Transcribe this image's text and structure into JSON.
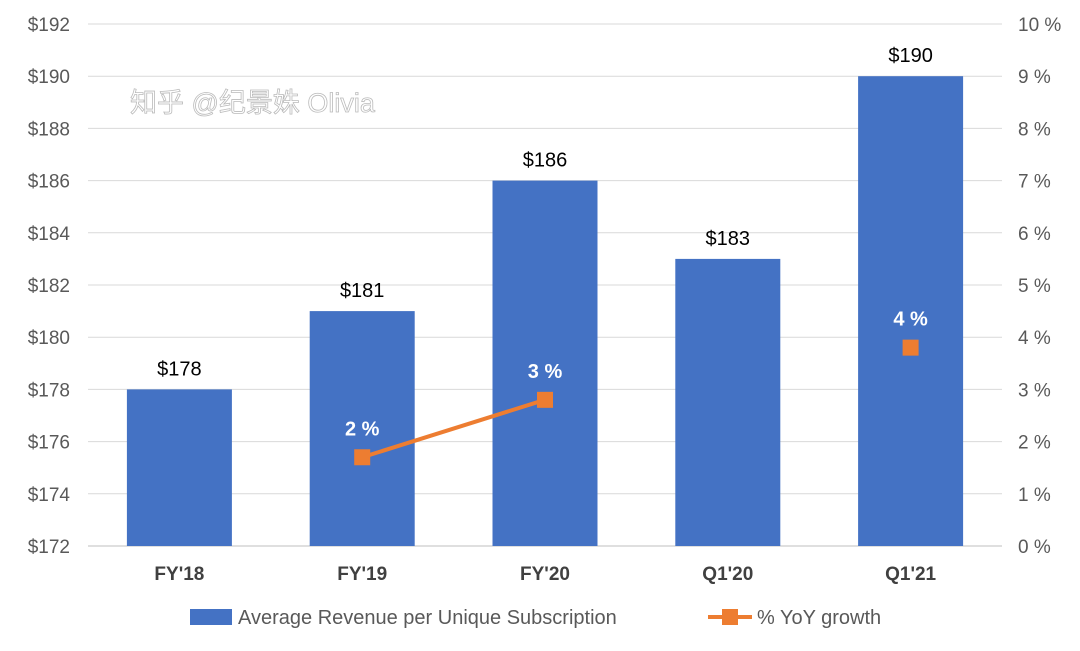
{
  "chart_data": {
    "type": "bar",
    "title": "",
    "categories": [
      "FY'18",
      "FY'19",
      "FY'20",
      "Q1'20",
      "Q1'21"
    ],
    "series": [
      {
        "name": "Average Revenue per Unique Subscription",
        "type": "bar",
        "axis": "left",
        "values": [
          178,
          181,
          186,
          183,
          190
        ],
        "labels": [
          "$178",
          "$181",
          "$186",
          "$183",
          "$190"
        ],
        "color": "#4472C4"
      },
      {
        "name": "% YoY growth",
        "type": "line",
        "axis": "right",
        "values": [
          null,
          1.7,
          2.8,
          null,
          3.8
        ],
        "labels": [
          null,
          "2 %",
          "3 %",
          null,
          "4 %"
        ],
        "color": "#ED7D31"
      }
    ],
    "ylim": [
      172,
      192
    ],
    "yticks": [
      "$172",
      "$174",
      "$176",
      "$178",
      "$180",
      "$182",
      "$184",
      "$186",
      "$188",
      "$190",
      "$192"
    ],
    "y2lim": [
      0,
      10
    ],
    "y2ticks": [
      "0 %",
      "1 %",
      "2 %",
      "3 %",
      "4 %",
      "5 %",
      "6 %",
      "7 %",
      "8 %",
      "9 %",
      "10 %"
    ],
    "grid": true,
    "legend": "bottom"
  },
  "watermark": "知乎 @纪景姝 Olivia"
}
